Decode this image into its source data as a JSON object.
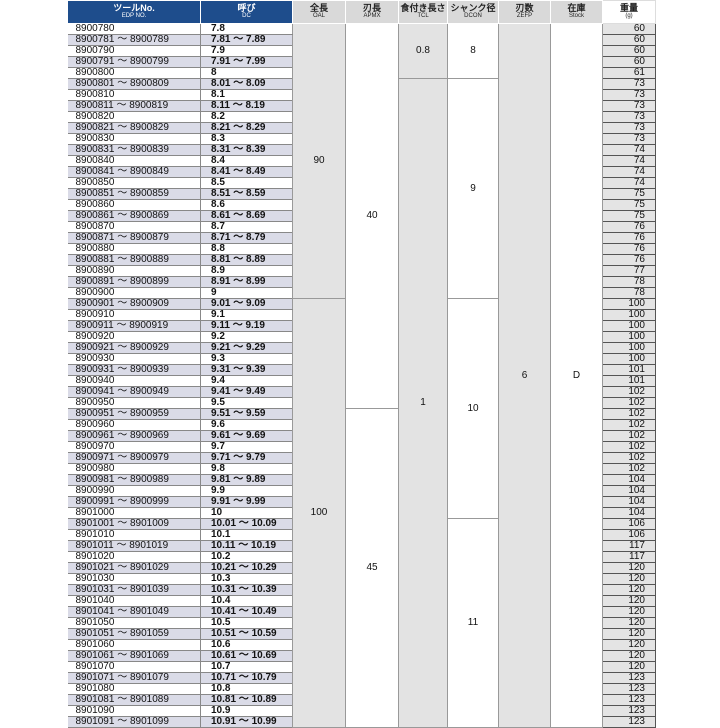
{
  "headers": [
    {
      "jp": "ツールNo.",
      "en": "EDP NO."
    },
    {
      "jp": "呼び",
      "en": "DC"
    },
    {
      "jp": "全長",
      "en": "OAL"
    },
    {
      "jp": "刃長",
      "en": "APMX"
    },
    {
      "jp": "食付き長さ",
      "en": "TCL"
    },
    {
      "jp": "シャンク径",
      "en": "DCON"
    },
    {
      "jp": "刃数",
      "en": "ZEFP"
    },
    {
      "jp": "在庫",
      "en": "Stock"
    },
    {
      "jp": "重量",
      "en": "(g)"
    }
  ],
  "rows": [
    [
      "8900780",
      "7.8",
      60
    ],
    [
      "8900781 ～ 8900789",
      "7.81 ～ 7.89",
      60
    ],
    [
      "8900790",
      "7.9",
      60
    ],
    [
      "8900791 ～ 8900799",
      "7.91 ～ 7.99",
      60
    ],
    [
      "8900800",
      "8",
      61
    ],
    [
      "8900801 ～ 8900809",
      "8.01 ～ 8.09",
      73
    ],
    [
      "8900810",
      "8.1",
      73
    ],
    [
      "8900811 ～ 8900819",
      "8.11 ～ 8.19",
      73
    ],
    [
      "8900820",
      "8.2",
      73
    ],
    [
      "8900821 ～ 8900829",
      "8.21 ～ 8.29",
      73
    ],
    [
      "8900830",
      "8.3",
      73
    ],
    [
      "8900831 ～ 8900839",
      "8.31 ～ 8.39",
      74
    ],
    [
      "8900840",
      "8.4",
      74
    ],
    [
      "8900841 ～ 8900849",
      "8.41 ～ 8.49",
      74
    ],
    [
      "8900850",
      "8.5",
      74
    ],
    [
      "8900851 ～ 8900859",
      "8.51 ～ 8.59",
      75
    ],
    [
      "8900860",
      "8.6",
      75
    ],
    [
      "8900861 ～ 8900869",
      "8.61 ～ 8.69",
      75
    ],
    [
      "8900870",
      "8.7",
      76
    ],
    [
      "8900871 ～ 8900879",
      "8.71 ～ 8.79",
      76
    ],
    [
      "8900880",
      "8.8",
      76
    ],
    [
      "8900881 ～ 8900889",
      "8.81 ～ 8.89",
      76
    ],
    [
      "8900890",
      "8.9",
      77
    ],
    [
      "8900891 ～ 8900899",
      "8.91 ～ 8.99",
      78
    ],
    [
      "8900900",
      "9",
      78
    ],
    [
      "8900901 ～ 8900909",
      "9.01 ～ 9.09",
      100
    ],
    [
      "8900910",
      "9.1",
      100
    ],
    [
      "8900911 ～ 8900919",
      "9.11 ～ 9.19",
      100
    ],
    [
      "8900920",
      "9.2",
      100
    ],
    [
      "8900921 ～ 8900929",
      "9.21 ～ 9.29",
      100
    ],
    [
      "8900930",
      "9.3",
      100
    ],
    [
      "8900931 ～ 8900939",
      "9.31 ～ 9.39",
      101
    ],
    [
      "8900940",
      "9.4",
      101
    ],
    [
      "8900941 ～ 8900949",
      "9.41 ～ 9.49",
      102
    ],
    [
      "8900950",
      "9.5",
      102
    ],
    [
      "8900951 ～ 8900959",
      "9.51 ～ 9.59",
      102
    ],
    [
      "8900960",
      "9.6",
      102
    ],
    [
      "8900961 ～ 8900969",
      "9.61 ～ 9.69",
      102
    ],
    [
      "8900970",
      "9.7",
      102
    ],
    [
      "8900971 ～ 8900979",
      "9.71 ～ 9.79",
      102
    ],
    [
      "8900980",
      "9.8",
      102
    ],
    [
      "8900981 ～ 8900989",
      "9.81 ～ 9.89",
      104
    ],
    [
      "8900990",
      "9.9",
      104
    ],
    [
      "8900991 ～ 8900999",
      "9.91 ～ 9.99",
      104
    ],
    [
      "8901000",
      "10",
      104
    ],
    [
      "8901001 ～ 8901009",
      "10.01 ～ 10.09",
      106
    ],
    [
      "8901010",
      "10.1",
      106
    ],
    [
      "8901011 ～ 8901019",
      "10.11 ～ 10.19",
      117
    ],
    [
      "8901020",
      "10.2",
      117
    ],
    [
      "8901021 ～ 8901029",
      "10.21 ～ 10.29",
      120
    ],
    [
      "8901030",
      "10.3",
      120
    ],
    [
      "8901031 ～ 8901039",
      "10.31 ～ 10.39",
      120
    ],
    [
      "8901040",
      "10.4",
      120
    ],
    [
      "8901041 ～ 8901049",
      "10.41 ～ 10.49",
      120
    ],
    [
      "8901050",
      "10.5",
      120
    ],
    [
      "8901051 ～ 8901059",
      "10.51 ～ 10.59",
      120
    ],
    [
      "8901060",
      "10.6",
      120
    ],
    [
      "8901061 ～ 8901069",
      "10.61 ～ 10.69",
      120
    ],
    [
      "8901070",
      "10.7",
      120
    ],
    [
      "8901071 ～ 8901079",
      "10.71 ～ 10.79",
      123
    ],
    [
      "8901080",
      "10.8",
      123
    ],
    [
      "8901081 ～ 8901089",
      "10.81 ～ 10.89",
      123
    ],
    [
      "8901090",
      "10.9",
      123
    ],
    [
      "8901091 ～ 8901099",
      "10.91 ～ 10.99",
      123
    ]
  ],
  "merged": {
    "oal": [
      {
        "value": "90",
        "span": 25
      },
      {
        "value": "100",
        "span": 39
      }
    ],
    "apmx": [
      {
        "value": "40",
        "span": 35
      },
      {
        "value": "45",
        "span": 29
      }
    ],
    "tcl": [
      {
        "value": "0.8",
        "span": 5
      },
      {
        "value": "1",
        "span": 59
      }
    ],
    "dcon": [
      {
        "value": "8",
        "span": 5
      },
      {
        "value": "9",
        "span": 20
      },
      {
        "value": "10",
        "span": 20
      },
      {
        "value": "11",
        "span": 19
      }
    ],
    "zefp": [
      {
        "value": "6",
        "span": 64
      }
    ],
    "stock": [
      {
        "value": "D",
        "span": 64
      }
    ]
  },
  "colors": {
    "header_blue": "#1e4d8c",
    "row_alt": "#dadbe7",
    "merged_gray": "#e3e3e3"
  }
}
